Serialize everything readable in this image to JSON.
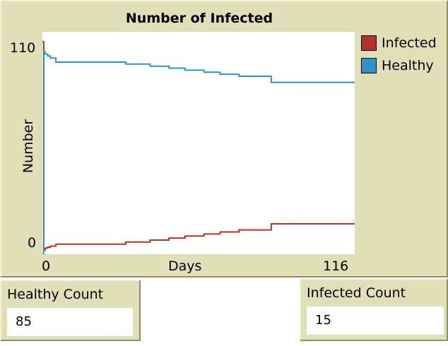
{
  "plot": {
    "title": "Number of Infected",
    "xlabel": "Days",
    "ylabel": "Number",
    "x_min_label": "0",
    "x_max_label": "116",
    "y_min_label": "0",
    "y_max_label": "110"
  },
  "chart_data": {
    "type": "line",
    "title": "Number of Infected",
    "xlabel": "Days",
    "ylabel": "Number",
    "xlim": [
      0,
      116
    ],
    "ylim": [
      0,
      110
    ],
    "legend": "right",
    "grid": false,
    "series": [
      {
        "name": "Infected",
        "color": "#b3332b",
        "x": [
          0,
          0.5,
          1,
          2,
          3,
          5,
          27,
          31,
          40,
          47,
          53,
          60,
          66,
          73,
          85,
          116
        ],
        "y": [
          105,
          2,
          3,
          3.5,
          4,
          5,
          5,
          6,
          7,
          8,
          9,
          10,
          11,
          12,
          15,
          15
        ]
      },
      {
        "name": "Healthy",
        "color": "#2e93c9",
        "x": [
          0,
          0.5,
          1,
          2,
          3,
          5,
          27,
          31,
          40,
          47,
          53,
          60,
          66,
          73,
          85,
          116
        ],
        "y": [
          0,
          100,
          99,
          98,
          97,
          95,
          95,
          94,
          93,
          92,
          91,
          90,
          89,
          88,
          85,
          85
        ]
      }
    ]
  },
  "legend": {
    "items": [
      {
        "label": "Infected",
        "color": "#b3332b"
      },
      {
        "label": "Healthy",
        "color": "#2e93c9"
      }
    ]
  },
  "monitors": {
    "healthy": {
      "label": "Healthy Count",
      "value": "85"
    },
    "infected": {
      "label": "Infected Count",
      "value": "15"
    }
  }
}
